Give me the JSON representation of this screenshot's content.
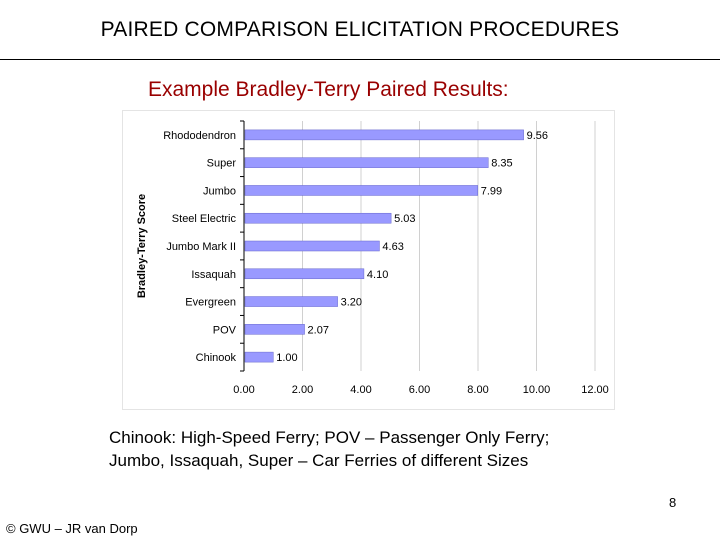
{
  "slide": {
    "title": "PAIRED COMPARISON ELICITATION PROCEDURES",
    "subtitle": "Example Bradley-Terry Paired Results:",
    "caption_line1": "Chinook: High-Speed Ferry; POV – Passenger Only Ferry;",
    "caption_line2": "Jumbo, Issaquah, Super  – Car Ferries of different Sizes",
    "page_number": "8",
    "footer": "© GWU – JR van Dorp"
  },
  "chart_data": {
    "type": "bar",
    "orientation": "horizontal",
    "categories": [
      "Rhododendron",
      "Super",
      "Jumbo",
      "Steel Electric",
      "Jumbo Mark II",
      "Issaquah",
      "Evergreen",
      "POV",
      "Chinook"
    ],
    "values": [
      9.56,
      8.35,
      7.99,
      5.03,
      4.63,
      4.1,
      3.2,
      2.07,
      1.0
    ],
    "value_labels": [
      "9.56",
      "8.35",
      "7.99",
      "5.03",
      "4.63",
      "4.10",
      "3.20",
      "2.07",
      "1.00"
    ],
    "ylabel": "Bradley-Terry Score",
    "xlim": [
      0,
      12
    ],
    "x_ticks": [
      "0.00",
      "2.00",
      "4.00",
      "6.00",
      "8.00",
      "10.00",
      "12.00"
    ],
    "grid": true,
    "bar_color": "#9999ff"
  }
}
